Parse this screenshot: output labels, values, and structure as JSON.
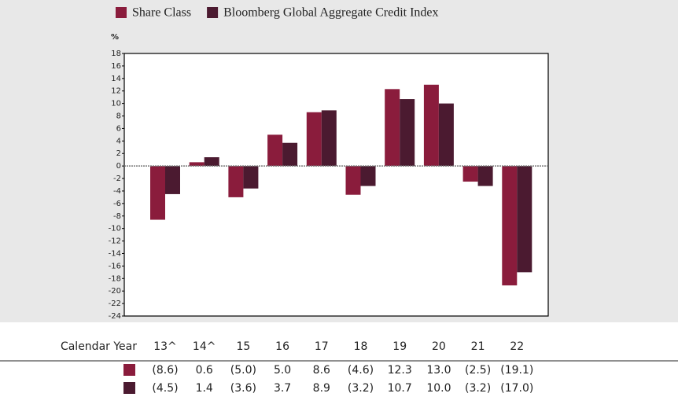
{
  "chart_data": {
    "type": "bar",
    "y_label": "%",
    "categories": [
      "13^",
      "14^",
      "15",
      "16",
      "17",
      "18",
      "19",
      "20",
      "21",
      "22"
    ],
    "table_header": "Calendar Year",
    "series": [
      {
        "name": "Share Class",
        "color": "#8a1c3c",
        "values": [
          -8.6,
          0.6,
          -5.0,
          5.0,
          8.6,
          -4.6,
          12.3,
          13.0,
          -2.5,
          -19.1
        ],
        "value_labels": [
          "(8.6)",
          "0.6",
          "(5.0)",
          "5.0",
          "8.6",
          "(4.6)",
          "12.3",
          "13.0",
          "(2.5)",
          "(19.1)"
        ]
      },
      {
        "name": "Bloomberg Global Aggregate Credit Index",
        "color": "#4b1a30",
        "values": [
          -4.5,
          1.4,
          -3.6,
          3.7,
          8.9,
          -3.2,
          10.7,
          10.0,
          -3.2,
          -17.0
        ],
        "value_labels": [
          "(4.5)",
          "1.4",
          "(3.6)",
          "3.7",
          "8.9",
          "(3.2)",
          "10.7",
          "10.0",
          "(3.2)",
          "(17.0)"
        ]
      }
    ],
    "ylim": [
      -24,
      18
    ],
    "yticks": [
      18,
      16,
      14,
      12,
      10,
      8,
      6,
      4,
      2,
      0,
      -2,
      -4,
      -6,
      -8,
      -10,
      -12,
      -14,
      -16,
      -18,
      -20,
      -22,
      -24
    ]
  }
}
